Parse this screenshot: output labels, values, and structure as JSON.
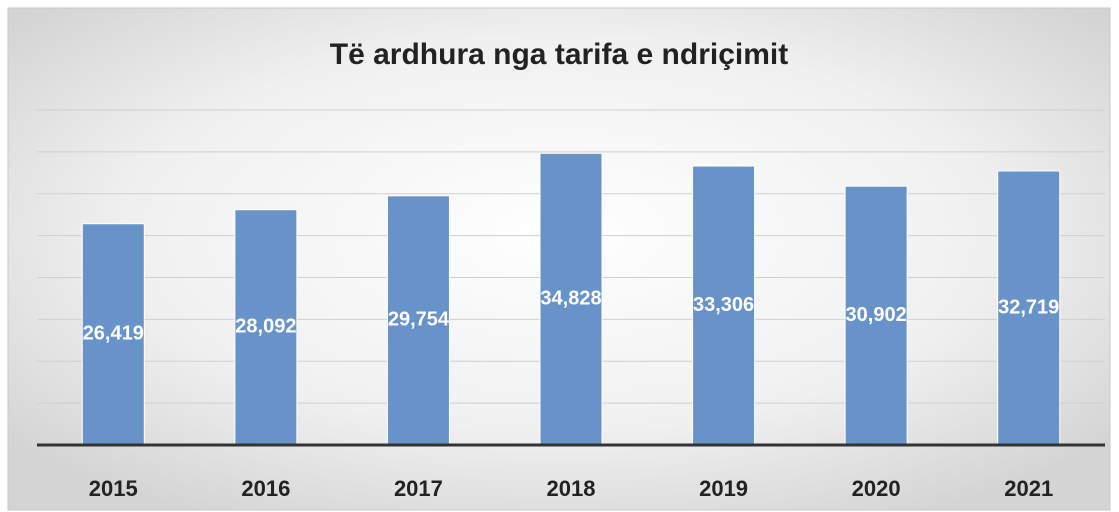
{
  "chart_data": {
    "type": "bar",
    "title": "Të ardhura nga tarifa e ndriçimit",
    "categories": [
      "2015",
      "2016",
      "2017",
      "2018",
      "2019",
      "2020",
      "2021"
    ],
    "values": [
      26419,
      28092,
      29754,
      34828,
      33306,
      30902,
      32719
    ],
    "value_labels": [
      "26,419",
      "28,092",
      "29,754",
      "34,828",
      "33,306",
      "30,902",
      "32,719"
    ],
    "color": "#6893c8",
    "ylim": [
      0,
      40000
    ],
    "yticks": [
      0,
      5000,
      10000,
      15000,
      20000,
      25000,
      30000,
      35000,
      40000
    ],
    "grid": true
  }
}
